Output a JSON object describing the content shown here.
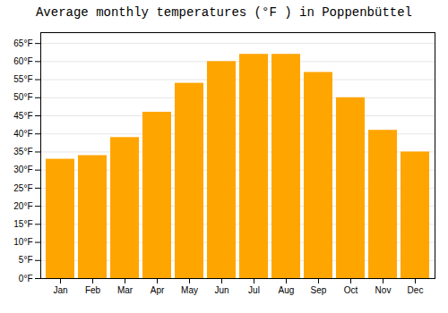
{
  "chart_data": {
    "type": "bar",
    "title": "Average monthly temperatures (°F ) in Poppenbüttel",
    "categories": [
      "Jan",
      "Feb",
      "Mar",
      "Apr",
      "May",
      "Jun",
      "Jul",
      "Aug",
      "Sep",
      "Oct",
      "Nov",
      "Dec"
    ],
    "values": [
      33,
      34,
      39,
      46,
      54,
      60,
      62,
      62,
      57,
      50,
      41,
      35
    ],
    "color": "#FFA500",
    "ylim": [
      0,
      68
    ],
    "yticks": [
      {
        "value": 0,
        "label": "0°F"
      },
      {
        "value": 5,
        "label": "5°F"
      },
      {
        "value": 10,
        "label": "10°F"
      },
      {
        "value": 15,
        "label": "15°F"
      },
      {
        "value": 20,
        "label": "20°F"
      },
      {
        "value": 25,
        "label": "25°F"
      },
      {
        "value": 30,
        "label": "30°F"
      },
      {
        "value": 35,
        "label": "35°F"
      },
      {
        "value": 40,
        "label": "40°F"
      },
      {
        "value": 45,
        "label": "45°F"
      },
      {
        "value": 50,
        "label": "50°F"
      },
      {
        "value": 55,
        "label": "55°F"
      },
      {
        "value": 60,
        "label": "60°F"
      },
      {
        "value": 65,
        "label": "65°F"
      }
    ],
    "grid": true
  }
}
